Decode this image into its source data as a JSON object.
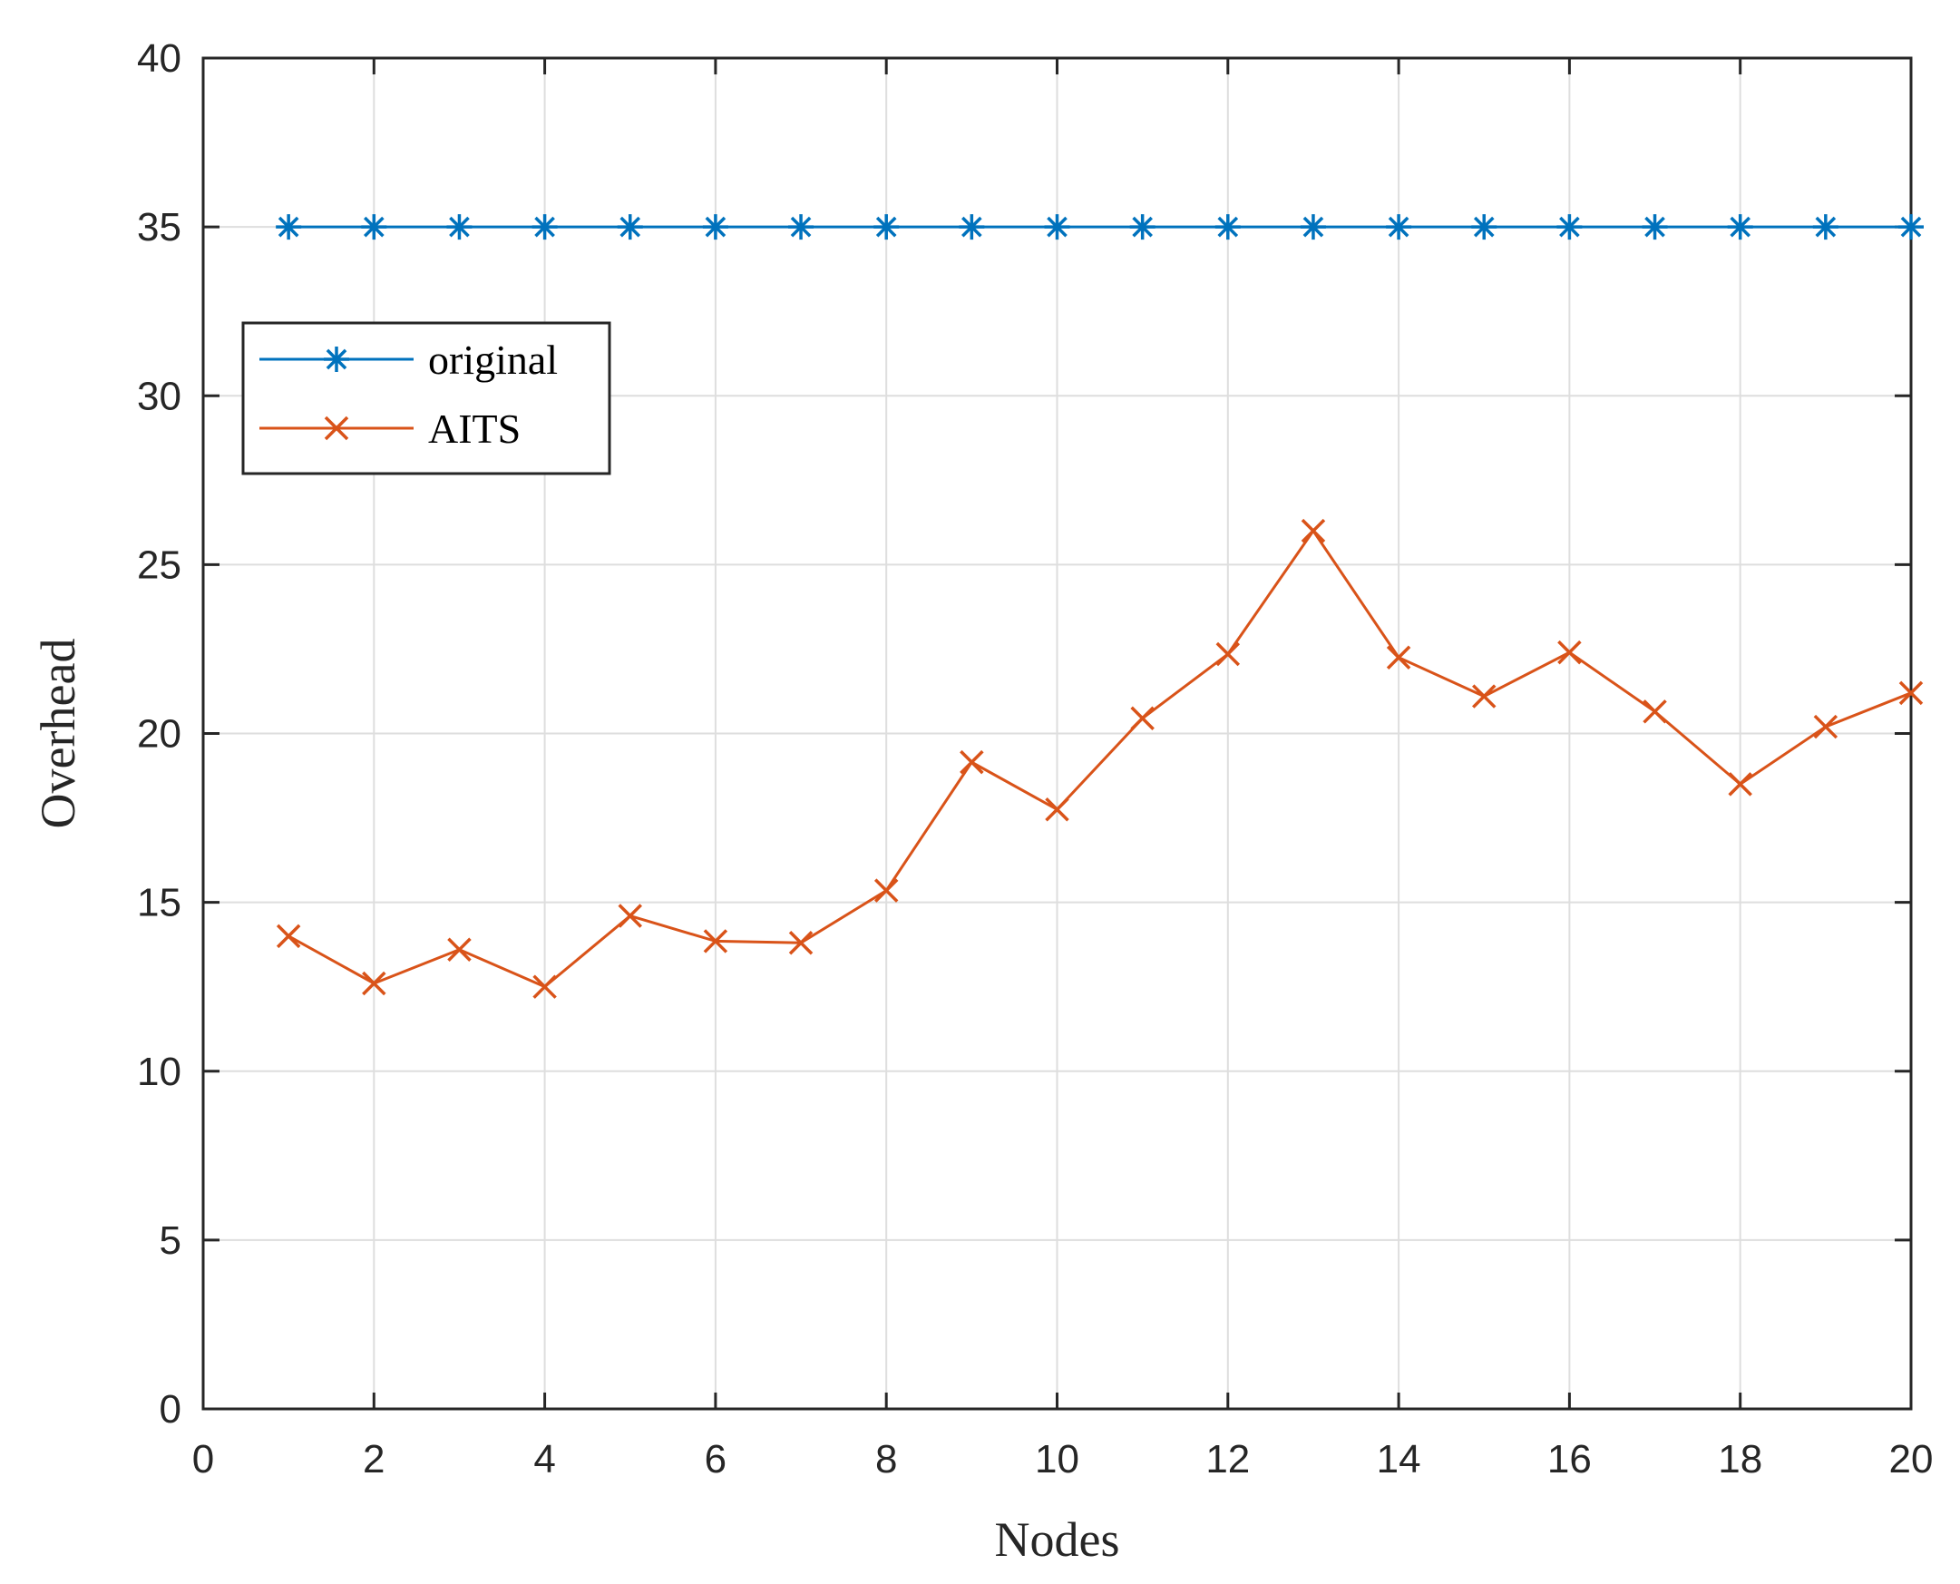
{
  "chart_data": {
    "type": "line",
    "title": "",
    "xlabel": "Nodes",
    "ylabel": "Overhead",
    "xlim": [
      0,
      20
    ],
    "ylim": [
      0,
      40
    ],
    "xticks": [
      0,
      2,
      4,
      6,
      8,
      10,
      12,
      14,
      16,
      18,
      20
    ],
    "yticks": [
      0,
      5,
      10,
      15,
      20,
      25,
      30,
      35,
      40
    ],
    "grid": true,
    "legend_position": "upper-left",
    "x": [
      1,
      2,
      3,
      4,
      5,
      6,
      7,
      8,
      9,
      10,
      11,
      12,
      13,
      14,
      15,
      16,
      17,
      18,
      19,
      20
    ],
    "series": [
      {
        "name": "original",
        "color": "#0072BD",
        "marker": "asterisk",
        "values": [
          35,
          35,
          35,
          35,
          35,
          35,
          35,
          35,
          35,
          35,
          35,
          35,
          35,
          35,
          35,
          35,
          35,
          35,
          35,
          35
        ]
      },
      {
        "name": "AITS",
        "color": "#D95319",
        "marker": "x",
        "values": [
          14.0,
          12.6,
          13.6,
          12.5,
          14.6,
          13.85,
          13.8,
          15.35,
          19.15,
          17.75,
          20.45,
          22.35,
          26.0,
          22.25,
          21.1,
          22.4,
          20.65,
          18.5,
          20.2,
          21.2
        ]
      }
    ]
  }
}
